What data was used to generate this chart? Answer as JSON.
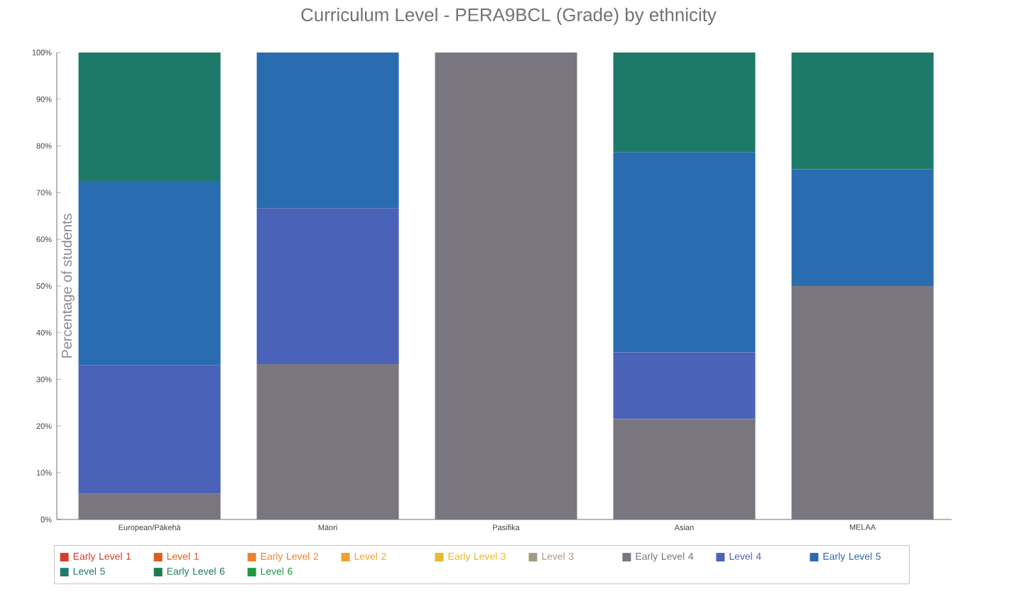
{
  "chart_data": {
    "type": "bar",
    "stacked": true,
    "title": "Curriculum Level - PERA9BCL (Grade) by ethnicity",
    "ylabel": "Percentage of students",
    "categories": [
      "European/Pākehā",
      "Māori",
      "Pasifika",
      "Asian",
      "MELAA"
    ],
    "ylim": [
      0,
      100
    ],
    "yticks": [
      {
        "value": 0,
        "label": "0%"
      },
      {
        "value": 10,
        "label": "10%"
      },
      {
        "value": 20,
        "label": "20%"
      },
      {
        "value": 30,
        "label": "30%"
      },
      {
        "value": 40,
        "label": "40%"
      },
      {
        "value": 50,
        "label": "50%"
      },
      {
        "value": 60,
        "label": "60%"
      },
      {
        "value": 70,
        "label": "70%"
      },
      {
        "value": 80,
        "label": "80%"
      },
      {
        "value": 90,
        "label": "90%"
      },
      {
        "value": 100,
        "label": "100%"
      }
    ],
    "grid": false,
    "legend": "bottom",
    "series": [
      {
        "name": "Early Level 1",
        "color": "#d63a2a",
        "values": [
          0,
          0,
          0,
          0,
          0
        ]
      },
      {
        "name": "Level 1",
        "color": "#e05a20",
        "values": [
          0,
          0,
          0,
          0,
          0
        ]
      },
      {
        "name": "Early Level 2",
        "color": "#e8822f",
        "values": [
          0,
          0,
          0,
          0,
          0
        ]
      },
      {
        "name": "Level 2",
        "color": "#efa032",
        "values": [
          0,
          0,
          0,
          0,
          0
        ]
      },
      {
        "name": "Early Level 3",
        "color": "#e8b830",
        "values": [
          0,
          0,
          0,
          0,
          0
        ]
      },
      {
        "name": "Level 3",
        "color": "#a89a80",
        "values": [
          0,
          0,
          0,
          0,
          0
        ]
      },
      {
        "name": "Early Level 4",
        "color": "#7a7680",
        "values": [
          5.5,
          33.3,
          100,
          21.5,
          50
        ]
      },
      {
        "name": "Level 4",
        "color": "#4a62b8",
        "values": [
          27.5,
          33.3,
          0,
          14.3,
          0
        ]
      },
      {
        "name": "Early Level 5",
        "color": "#2a6cb0",
        "values": [
          39.5,
          33.4,
          0,
          42.8,
          25
        ]
      },
      {
        "name": "Level 5",
        "color": "#1e7a68",
        "values": [
          27.5,
          0,
          0,
          21.4,
          25
        ]
      },
      {
        "name": "Early Level 6",
        "color": "#1f7a50",
        "values": [
          0,
          0,
          0,
          0,
          0
        ]
      },
      {
        "name": "Level 6",
        "color": "#1a9a40",
        "values": [
          0,
          0,
          0,
          0,
          0
        ]
      }
    ]
  }
}
